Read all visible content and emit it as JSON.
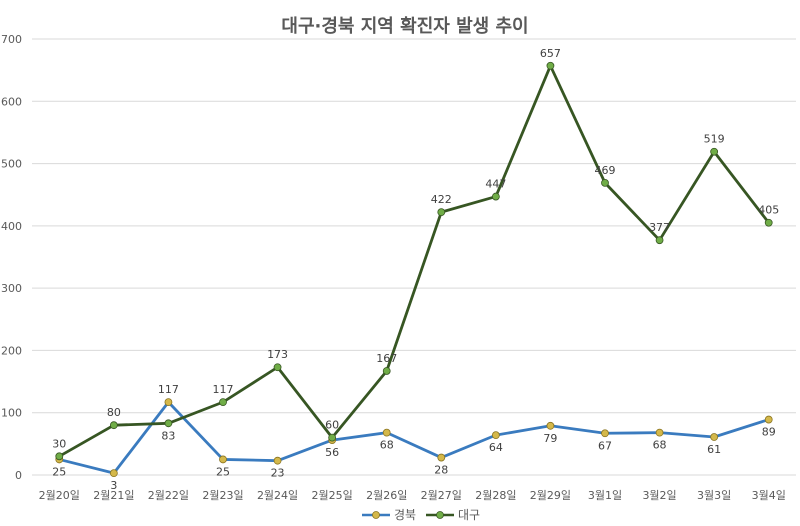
{
  "chart_data": {
    "type": "line",
    "title": "대구·경북 지역 확진자 발생 추이",
    "categories": [
      "2월20일",
      "2월21일",
      "2월22일",
      "2월23일",
      "2월24일",
      "2월25일",
      "2월26일",
      "2월27일",
      "2월28일",
      "2월29일",
      "3월1일",
      "3월2일",
      "3월3일",
      "3월4일"
    ],
    "series": [
      {
        "name": "경북",
        "color": "#3a7bbf",
        "marker_color": "#d4b84a",
        "values": [
          25,
          3,
          117,
          25,
          23,
          56,
          68,
          28,
          64,
          79,
          67,
          68,
          61,
          89
        ]
      },
      {
        "name": "대구",
        "color": "#375623",
        "marker_color": "#70ad47",
        "values": [
          30,
          80,
          83,
          117,
          173,
          60,
          167,
          422,
          447,
          657,
          469,
          377,
          519,
          405
        ]
      }
    ],
    "y_ticks": [
      "0",
      "100",
      "200",
      "300",
      "400",
      "500",
      "600",
      "700"
    ],
    "ylim": [
      0,
      700
    ],
    "grid": true,
    "legend": "bottom"
  }
}
